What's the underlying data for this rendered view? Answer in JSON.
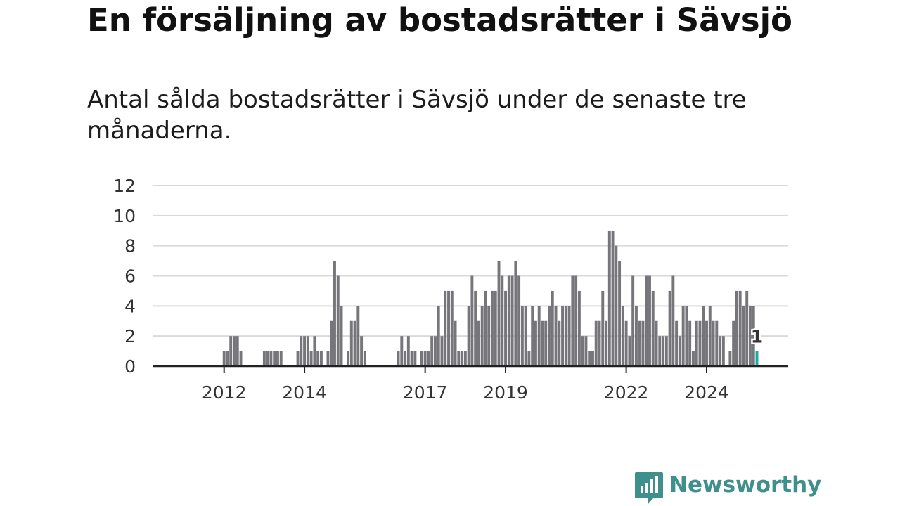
{
  "title": "En försäljning av bostadsrätter i Sävsjö",
  "subtitle": "Antal sålda bostadsrätter i Sävsjö under de senaste tre månaderna.",
  "brand": {
    "name": "Newsworthy",
    "color": "#3f8f8c"
  },
  "chart_data": {
    "type": "bar",
    "title": "En försäljning av bostadsrätter i Sävsjö",
    "subtitle": "Antal sålda bostadsrätter i Sävsjö under de senaste tre månaderna.",
    "ylim": [
      0,
      12
    ],
    "yticks": [
      0,
      2,
      4,
      6,
      8,
      10,
      12
    ],
    "xticks": [
      "2012",
      "2014",
      "2017",
      "2019",
      "2022",
      "2024"
    ],
    "grid": true,
    "bar_color": "#76757a",
    "highlight_color": "#19aaa5",
    "highlight_label": "1",
    "series": [
      {
        "name": "",
        "values": [
          0,
          0,
          0,
          0,
          0,
          0,
          0,
          0,
          0,
          0,
          0,
          0,
          1,
          1,
          2,
          2,
          2,
          1,
          0,
          0,
          0,
          0,
          0,
          0,
          1,
          1,
          1,
          1,
          1,
          1,
          0,
          0,
          0,
          0,
          1,
          2,
          2,
          2,
          1,
          2,
          1,
          1,
          0,
          1,
          3,
          7,
          6,
          4,
          0,
          1,
          3,
          3,
          4,
          2,
          1,
          0,
          0,
          0,
          0,
          0,
          0,
          0,
          0,
          0,
          1,
          2,
          1,
          2,
          1,
          1,
          0,
          1,
          1,
          1,
          2,
          2,
          4,
          2,
          5,
          5,
          5,
          3,
          1,
          1,
          1,
          4,
          6,
          5,
          3,
          4,
          5,
          4,
          5,
          5,
          7,
          6,
          5,
          6,
          6,
          7,
          6,
          4,
          4,
          1,
          4,
          3,
          4,
          3,
          3,
          4,
          5,
          4,
          3,
          4,
          4,
          4,
          6,
          6,
          5,
          2,
          2,
          1,
          1,
          3,
          3,
          5,
          3,
          9,
          9,
          8,
          7,
          4,
          3,
          2,
          6,
          4,
          3,
          3,
          6,
          6,
          5,
          3,
          2,
          2,
          2,
          5,
          6,
          3,
          2,
          4,
          4,
          3,
          1,
          3,
          3,
          4,
          3,
          4,
          3,
          3,
          2,
          2,
          0,
          1,
          3,
          5,
          5,
          4,
          5,
          4,
          4,
          1
        ]
      }
    ]
  }
}
